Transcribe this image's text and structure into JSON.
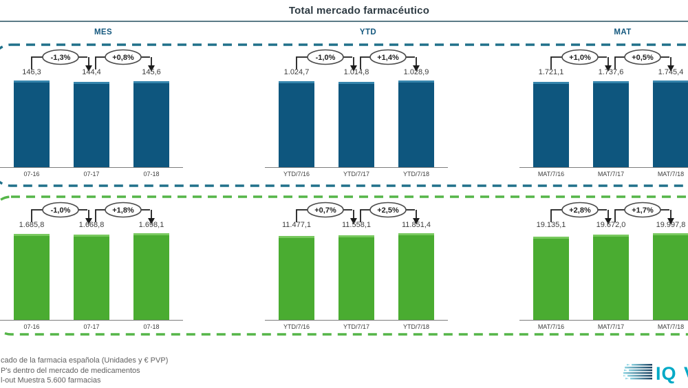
{
  "header": {
    "title": "Total mercado farmacéutico"
  },
  "columns": [
    "MES",
    "YTD",
    "MAT"
  ],
  "chart_data": [
    {
      "type": "bar",
      "row": "top",
      "section": "MES",
      "categories": [
        "07-16",
        "07-17",
        "07-18"
      ],
      "values": [
        146.3,
        144.4,
        145.6
      ],
      "bar_labels": [
        "146,3",
        "144,4",
        "145,6"
      ],
      "changes": [
        "-1,3%",
        "+0,8%"
      ],
      "bar_color": "#0e567e"
    },
    {
      "type": "bar",
      "row": "top",
      "section": "YTD",
      "categories": [
        "YTD/7/16",
        "YTD/7/17",
        "YTD/7/18"
      ],
      "values": [
        1024.7,
        1014.8,
        1028.9
      ],
      "bar_labels": [
        "1.024,7",
        "1.014,8",
        "1.028,9"
      ],
      "changes": [
        "-1,0%",
        "+1,4%"
      ],
      "bar_color": "#0e567e"
    },
    {
      "type": "bar",
      "row": "top",
      "section": "MAT",
      "categories": [
        "MAT/7/16",
        "MAT/7/17",
        "MAT/7/18"
      ],
      "values": [
        1721.1,
        1737.6,
        1745.4
      ],
      "bar_labels": [
        "1.721,1",
        "1.737,6",
        "1.745,4"
      ],
      "changes": [
        "+1,0%",
        "+0,5%"
      ],
      "bar_color": "#0e567e"
    },
    {
      "type": "bar",
      "row": "bottom",
      "section": "MES",
      "categories": [
        "07-16",
        "07-17",
        "07-18"
      ],
      "values": [
        1685.8,
        1668.8,
        1698.1
      ],
      "bar_labels": [
        "1.685,8",
        "1.668,8",
        "1.698,1"
      ],
      "changes": [
        "-1,0%",
        "+1,8%"
      ],
      "bar_color": "#4aac31"
    },
    {
      "type": "bar",
      "row": "bottom",
      "section": "YTD",
      "categories": [
        "YTD/7/16",
        "YTD/7/17",
        "YTD/7/18"
      ],
      "values": [
        11477.1,
        11558.1,
        11851.4
      ],
      "bar_labels": [
        "11.477,1",
        "11.558,1",
        "11.851,4"
      ],
      "changes": [
        "+0,7%",
        "+2,5%"
      ],
      "bar_color": "#4aac31"
    },
    {
      "type": "bar",
      "row": "bottom",
      "section": "MAT",
      "categories": [
        "MAT/7/16",
        "MAT/7/17",
        "MAT/7/18"
      ],
      "values": [
        19135.1,
        19672.0,
        19997.8
      ],
      "bar_labels": [
        "19.135,1",
        "19.672,0",
        "19.997,8"
      ],
      "changes": [
        "+2,8%",
        "+1,7%"
      ],
      "bar_color": "#4aac31"
    }
  ],
  "boxes": {
    "top_outline_color": "#20708a",
    "bottom_outline_color": "#55b548"
  },
  "footer": {
    "lines": [
      "cado de la farmacia española (Unidades y € PVP)",
      "P's dentro del mercado de medicamentos",
      "l-out Muestra 5.600 farmacias"
    ]
  },
  "logo": {
    "text": "IQ",
    "clipped_letter": "V",
    "accent_color": "#00a9c6"
  }
}
